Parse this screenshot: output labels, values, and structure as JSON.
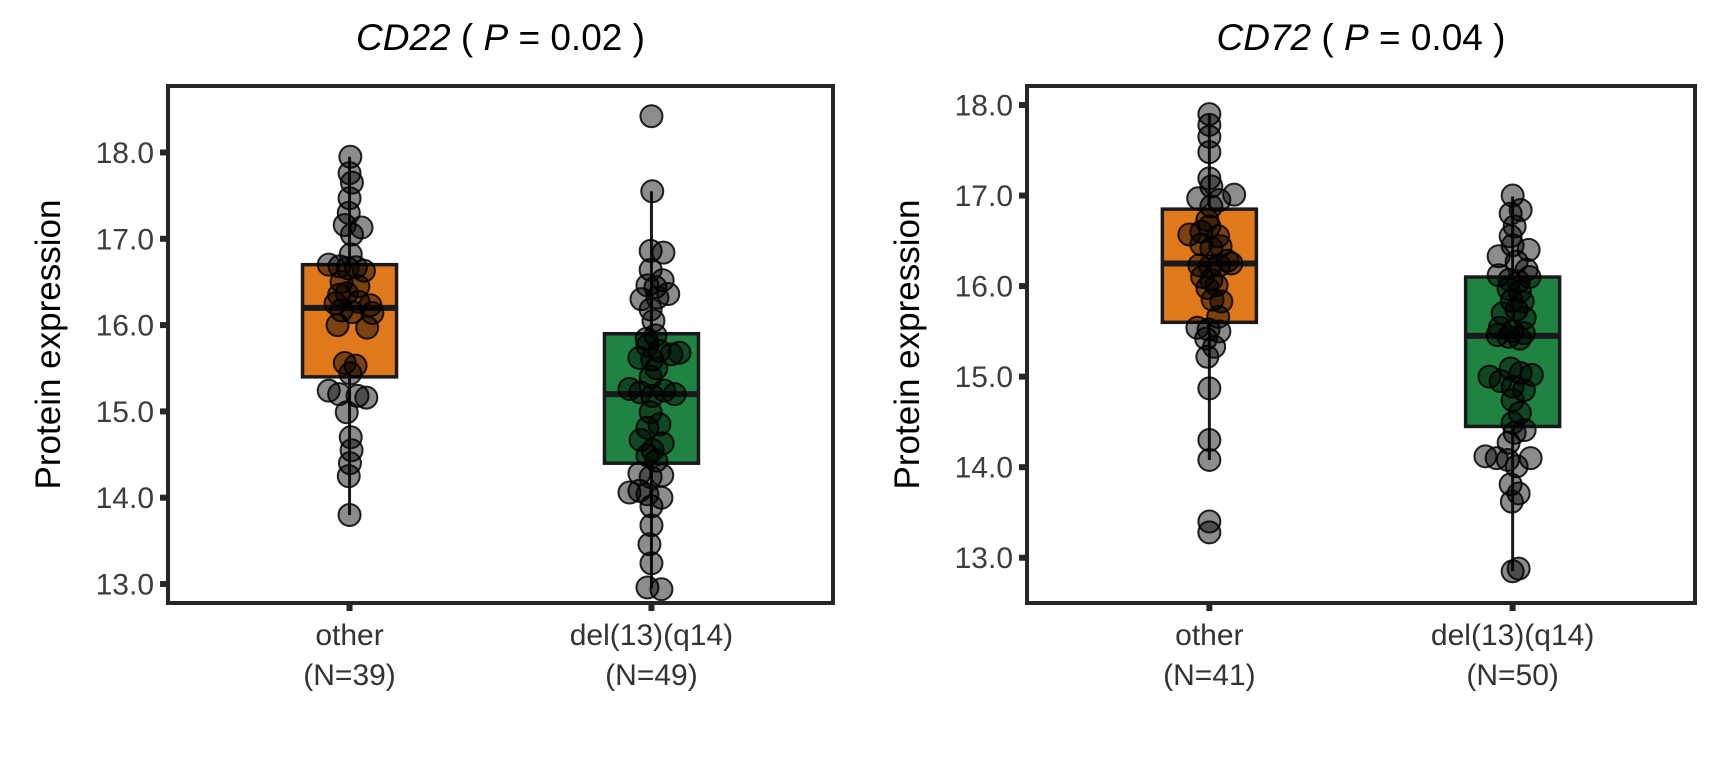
{
  "figure": {
    "background": "#ffffff",
    "point_style": {
      "fill": "#000000",
      "fill_opacity": 0.45,
      "stroke": "#000000",
      "stroke_opacity": 0.85,
      "radius": 11
    },
    "axis_style": {
      "border_color": "#262626",
      "tick_color": "#262626",
      "tick_label_color": "#3d3d3d"
    }
  },
  "chart_data": [
    {
      "type": "boxplot-jitter",
      "id": "CD22",
      "title_full": "CD22  ( P = 0.02 )",
      "title": {
        "gene": "CD22",
        "open": "  ( ",
        "p_symbol": "P",
        "equals": " = ",
        "p_value": "0.02",
        "close": " )"
      },
      "ylabel": "Protein expression",
      "ylim": [
        12.78,
        18.77
      ],
      "yticks": [
        13,
        14,
        15,
        16,
        17,
        18
      ],
      "ytick_labels": [
        "13.0",
        "14.0",
        "15.0",
        "16.0",
        "17.0",
        "18.0"
      ],
      "grid": false,
      "legend": "none",
      "groups": [
        {
          "label": "other",
          "n_label": "(N=39)",
          "n": 39,
          "fill": "#E0791C",
          "box": {
            "whisker_low": 13.8,
            "q1": 15.4,
            "median": 16.2,
            "q3": 16.7,
            "whisker_high": 17.95
          },
          "outliers": [],
          "points": [
            [
              17.95,
              0.02
            ],
            [
              17.76,
              0.0
            ],
            [
              17.65,
              0.06
            ],
            [
              17.47,
              0.0
            ],
            [
              17.3,
              -0.02
            ],
            [
              17.16,
              -0.12
            ],
            [
              17.13,
              0.3
            ],
            [
              17.05,
              0.06
            ],
            [
              16.82,
              0.03
            ],
            [
              16.7,
              -0.52
            ],
            [
              16.68,
              -0.25
            ],
            [
              16.66,
              -0.05
            ],
            [
              16.67,
              0.16
            ],
            [
              16.63,
              0.36
            ],
            [
              16.5,
              -0.2
            ],
            [
              16.45,
              0.22
            ],
            [
              16.37,
              -0.07
            ],
            [
              16.35,
              -0.26
            ],
            [
              16.25,
              -0.35
            ],
            [
              16.27,
              0.22
            ],
            [
              16.23,
              0.52
            ],
            [
              16.17,
              -0.2
            ],
            [
              16.15,
              0.07
            ],
            [
              16.14,
              0.57
            ],
            [
              16.0,
              -0.3
            ],
            [
              15.97,
              0.44
            ],
            [
              15.56,
              -0.12
            ],
            [
              15.53,
              0.15
            ],
            [
              15.44,
              0.02
            ],
            [
              15.24,
              -0.52
            ],
            [
              15.2,
              -0.26
            ],
            [
              15.18,
              0.2
            ],
            [
              15.16,
              0.42
            ],
            [
              14.99,
              -0.07
            ],
            [
              14.7,
              0.03
            ],
            [
              14.55,
              0.05
            ],
            [
              14.4,
              0.01
            ],
            [
              14.25,
              -0.02
            ],
            [
              13.8,
              0.0
            ]
          ]
        },
        {
          "label": "del(13)(q14)",
          "n_label": "(N=49)",
          "n": 49,
          "fill": "#1F8343",
          "box": {
            "whisker_low": 12.95,
            "q1": 14.4,
            "median": 15.2,
            "q3": 15.9,
            "whisker_high": 17.55
          },
          "outliers": [
            18.42
          ],
          "points": [
            [
              18.42,
              0.0
            ],
            [
              17.55,
              0.02
            ],
            [
              16.86,
              -0.02
            ],
            [
              16.84,
              0.3
            ],
            [
              16.64,
              -0.02
            ],
            [
              16.52,
              0.28
            ],
            [
              16.46,
              -0.1
            ],
            [
              16.44,
              0.1
            ],
            [
              16.3,
              -0.25
            ],
            [
              16.32,
              0.15
            ],
            [
              16.36,
              0.42
            ],
            [
              16.18,
              -0.02
            ],
            [
              16.05,
              0.05
            ],
            [
              15.88,
              0.1
            ],
            [
              15.84,
              -0.12
            ],
            [
              15.76,
              -0.1
            ],
            [
              15.7,
              0.2
            ],
            [
              15.66,
              0.5
            ],
            [
              15.68,
              0.7
            ],
            [
              15.62,
              -0.3
            ],
            [
              15.6,
              0.02
            ],
            [
              15.5,
              0.12
            ],
            [
              15.4,
              -0.02
            ],
            [
              15.26,
              -0.55
            ],
            [
              15.22,
              -0.28
            ],
            [
              15.18,
              0.02
            ],
            [
              15.24,
              0.32
            ],
            [
              15.2,
              0.58
            ],
            [
              14.99,
              -0.02
            ],
            [
              14.85,
              0.2
            ],
            [
              14.81,
              -0.1
            ],
            [
              14.67,
              -0.27
            ],
            [
              14.63,
              0.28
            ],
            [
              14.55,
              0.03
            ],
            [
              14.49,
              -0.1
            ],
            [
              14.43,
              0.12
            ],
            [
              14.28,
              -0.3
            ],
            [
              14.24,
              -0.02
            ],
            [
              14.26,
              0.27
            ],
            [
              14.06,
              -0.55
            ],
            [
              14.08,
              -0.3
            ],
            [
              14.04,
              -0.1
            ],
            [
              14.0,
              0.25
            ],
            [
              13.9,
              0.0
            ],
            [
              13.68,
              0.0
            ],
            [
              13.46,
              -0.05
            ],
            [
              13.24,
              0.0
            ],
            [
              12.96,
              -0.1
            ],
            [
              12.94,
              0.25
            ]
          ]
        }
      ]
    },
    {
      "type": "boxplot-jitter",
      "id": "CD72",
      "title_full": "CD72  ( P = 0.04 )",
      "title": {
        "gene": "CD72",
        "open": "  ( ",
        "p_symbol": "P",
        "equals": " = ",
        "p_value": "0.04",
        "close": " )"
      },
      "ylabel": "Protein expression",
      "ylim": [
        12.5,
        18.21
      ],
      "yticks": [
        13,
        14,
        15,
        16,
        17,
        18
      ],
      "ytick_labels": [
        "13.0",
        "14.0",
        "15.0",
        "16.0",
        "17.0",
        "18.0"
      ],
      "grid": false,
      "legend": "none",
      "groups": [
        {
          "label": "other",
          "n_label": "(N=41)",
          "n": 41,
          "fill": "#E0791C",
          "box": {
            "whisker_low": 14.08,
            "q1": 15.6,
            "median": 16.25,
            "q3": 16.85,
            "whisker_high": 17.9
          },
          "outliers": [
            13.4,
            13.28
          ],
          "points": [
            [
              17.9,
              0.0
            ],
            [
              17.78,
              0.0
            ],
            [
              17.65,
              0.0
            ],
            [
              17.48,
              0.0
            ],
            [
              17.19,
              0.0
            ],
            [
              17.1,
              0.05
            ],
            [
              17.01,
              0.62
            ],
            [
              16.97,
              -0.28
            ],
            [
              16.95,
              0.25
            ],
            [
              16.88,
              0.05
            ],
            [
              16.73,
              -0.05
            ],
            [
              16.66,
              0.0
            ],
            [
              16.6,
              -0.2
            ],
            [
              16.57,
              -0.5
            ],
            [
              16.55,
              0.22
            ],
            [
              16.46,
              -0.2
            ],
            [
              16.42,
              0.05
            ],
            [
              16.44,
              0.28
            ],
            [
              16.28,
              0.45
            ],
            [
              16.23,
              -0.25
            ],
            [
              16.22,
              0.02
            ],
            [
              16.23,
              0.25
            ],
            [
              16.25,
              0.55
            ],
            [
              16.1,
              -0.18
            ],
            [
              16.07,
              0.05
            ],
            [
              16.01,
              0.18
            ],
            [
              15.98,
              -0.05
            ],
            [
              15.85,
              0.08
            ],
            [
              15.83,
              0.3
            ],
            [
              15.66,
              0.22
            ],
            [
              15.54,
              -0.3
            ],
            [
              15.52,
              -0.02
            ],
            [
              15.5,
              0.25
            ],
            [
              15.42,
              -0.08
            ],
            [
              15.33,
              0.12
            ],
            [
              15.22,
              -0.05
            ],
            [
              14.87,
              0.0
            ],
            [
              14.3,
              0.0
            ],
            [
              14.08,
              0.0
            ],
            [
              13.4,
              0.0
            ],
            [
              13.28,
              0.0
            ]
          ]
        },
        {
          "label": "del(13)(q14)",
          "n_label": "(N=50)",
          "n": 50,
          "fill": "#1F8343",
          "box": {
            "whisker_low": 12.85,
            "q1": 14.45,
            "median": 15.45,
            "q3": 16.1,
            "whisker_high": 16.99
          },
          "outliers": [],
          "points": [
            [
              17.0,
              0.0
            ],
            [
              16.84,
              0.2
            ],
            [
              16.8,
              -0.05
            ],
            [
              16.66,
              0.05
            ],
            [
              16.55,
              -0.05
            ],
            [
              16.45,
              0.0
            ],
            [
              16.4,
              0.4
            ],
            [
              16.33,
              -0.35
            ],
            [
              16.27,
              0.1
            ],
            [
              16.18,
              0.35
            ],
            [
              16.12,
              -0.35
            ],
            [
              16.1,
              0.42
            ],
            [
              16.07,
              -0.08
            ],
            [
              16.05,
              0.15
            ],
            [
              15.97,
              -0.1
            ],
            [
              15.94,
              0.18
            ],
            [
              15.84,
              -0.02
            ],
            [
              15.83,
              0.25
            ],
            [
              15.74,
              0.1
            ],
            [
              15.7,
              -0.25
            ],
            [
              15.65,
              0.3
            ],
            [
              15.54,
              -0.32
            ],
            [
              15.5,
              0.0
            ],
            [
              15.48,
              0.28
            ],
            [
              15.46,
              -0.38
            ],
            [
              15.44,
              -0.1
            ],
            [
              15.42,
              0.18
            ],
            [
              15.09,
              -0.05
            ],
            [
              15.04,
              0.2
            ],
            [
              15.02,
              0.48
            ],
            [
              15.0,
              -0.58
            ],
            [
              14.95,
              -0.3
            ],
            [
              14.89,
              0.0
            ],
            [
              14.85,
              0.28
            ],
            [
              14.74,
              0.0
            ],
            [
              14.6,
              0.18
            ],
            [
              14.49,
              0.0
            ],
            [
              14.38,
              0.05
            ],
            [
              14.41,
              0.3
            ],
            [
              14.27,
              -0.1
            ],
            [
              14.12,
              -0.68
            ],
            [
              14.1,
              -0.4
            ],
            [
              14.08,
              -0.12
            ],
            [
              14.1,
              0.45
            ],
            [
              14.01,
              0.1
            ],
            [
              13.81,
              -0.05
            ],
            [
              13.71,
              0.15
            ],
            [
              13.62,
              -0.02
            ],
            [
              12.85,
              0.0
            ],
            [
              12.88,
              0.15
            ]
          ]
        }
      ]
    }
  ]
}
